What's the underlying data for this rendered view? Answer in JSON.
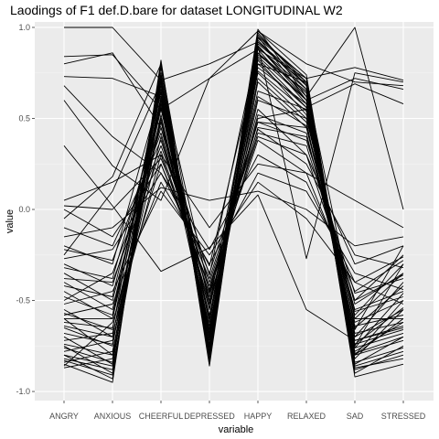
{
  "chart_data": {
    "type": "line",
    "title": "Laodings of F1 def.D.bare for dataset LONGITUDINAL W2",
    "xlabel": "variable",
    "ylabel": "value",
    "categories": [
      "ANGRY",
      "ANXIOUS",
      "CHEERFUL",
      "DEPRESSED",
      "HAPPY",
      "RELAXED",
      "SAD",
      "STRESSED"
    ],
    "y_ticks": [
      {
        "value": 1.0,
        "label": "1.0"
      },
      {
        "value": 0.5,
        "label": "0.5"
      },
      {
        "value": 0.0,
        "label": "0.0"
      },
      {
        "value": -0.5,
        "label": "-0.5"
      },
      {
        "value": -1.0,
        "label": "-1.0"
      }
    ],
    "ylim": [
      -1.05,
      1.03
    ],
    "grid": true,
    "legend": "none",
    "colors": {
      "panel": "#ebebeb",
      "grid_major": "#ffffff",
      "grid_minor": "#f4f4f4",
      "line": "#000000",
      "tick_text": "#4d4d4d"
    },
    "series": [
      {
        "values": [
          1.0,
          1.0,
          0.71,
          -0.71,
          0.99,
          0.62,
          1.0,
          0.0
        ]
      },
      {
        "values": [
          -0.6,
          -0.6,
          0.71,
          0.8,
          0.92,
          0.68,
          -0.6,
          -0.6
        ]
      },
      {
        "values": [
          0.84,
          0.85,
          0.55,
          0.72,
          0.88,
          0.72,
          0.78,
          0.71
        ]
      },
      {
        "values": [
          0.8,
          0.86,
          0.45,
          -0.36,
          0.9,
          -0.27,
          0.75,
          0.7
        ]
      },
      {
        "values": [
          0.73,
          0.72,
          0.62,
          -0.52,
          0.86,
          0.6,
          0.72,
          0.66
        ]
      },
      {
        "values": [
          0.68,
          0.4,
          0.2,
          -0.31,
          0.83,
          0.56,
          0.69,
          0.58
        ]
      },
      {
        "values": [
          0.6,
          0.24,
          0.05,
          0.72,
          0.98,
          0.8,
          0.7,
          0.68
        ]
      },
      {
        "values": [
          0.35,
          0.02,
          -0.34,
          -0.21,
          0.08,
          -0.55,
          -0.72,
          -0.65
        ]
      },
      {
        "values": [
          0.02,
          0.0,
          0.28,
          -0.35,
          0.48,
          0.45,
          -0.52,
          -0.35
        ]
      },
      {
        "values": [
          -0.05,
          0.18,
          0.8,
          -0.68,
          0.95,
          0.72,
          -0.8,
          -0.5
        ]
      },
      {
        "values": [
          -0.2,
          -0.3,
          0.65,
          -0.6,
          0.9,
          0.6,
          -0.65,
          -0.42
        ]
      },
      {
        "values": [
          -0.25,
          0.1,
          0.7,
          -0.45,
          0.5,
          0.55,
          -0.7,
          -0.55
        ]
      },
      {
        "values": [
          -0.3,
          -0.42,
          0.45,
          -0.55,
          0.75,
          0.5,
          -0.6,
          -0.35
        ]
      },
      {
        "values": [
          -0.35,
          -0.5,
          0.5,
          -0.7,
          0.85,
          0.65,
          -0.75,
          -0.3
        ]
      },
      {
        "values": [
          -0.4,
          -0.55,
          0.6,
          -0.62,
          0.8,
          0.7,
          -0.8,
          -0.6
        ]
      },
      {
        "values": [
          -0.45,
          -0.6,
          0.55,
          -0.5,
          0.45,
          0.4,
          -0.55,
          -0.45
        ]
      },
      {
        "values": [
          -0.5,
          -0.35,
          0.35,
          -0.4,
          0.4,
          0.3,
          -0.5,
          -0.25
        ]
      },
      {
        "values": [
          -0.55,
          -0.7,
          0.62,
          -0.75,
          0.95,
          0.6,
          -0.85,
          -0.7
        ]
      },
      {
        "values": [
          -0.6,
          -0.8,
          0.75,
          -0.82,
          0.97,
          0.68,
          -0.9,
          -0.75
        ]
      },
      {
        "values": [
          -0.65,
          -0.75,
          0.68,
          -0.78,
          0.9,
          0.62,
          -0.82,
          -0.55
        ]
      },
      {
        "values": [
          -0.7,
          -0.85,
          0.7,
          -0.74,
          0.88,
          0.58,
          -0.78,
          -0.62
        ]
      },
      {
        "values": [
          -0.75,
          -0.9,
          0.72,
          -0.8,
          0.93,
          0.66,
          -0.88,
          -0.8
        ]
      },
      {
        "values": [
          -0.8,
          -0.93,
          0.78,
          -0.84,
          0.96,
          0.7,
          -0.92,
          -0.85
        ]
      },
      {
        "values": [
          -0.82,
          -0.88,
          0.6,
          -0.7,
          0.7,
          0.45,
          -0.62,
          -0.5
        ]
      },
      {
        "values": [
          -0.85,
          -0.95,
          0.82,
          -0.86,
          0.98,
          0.74,
          -0.86,
          -0.78
        ]
      },
      {
        "values": [
          -0.87,
          -0.82,
          0.58,
          -0.66,
          0.82,
          0.52,
          -0.7,
          -0.4
        ]
      },
      {
        "values": [
          -0.84,
          -0.78,
          0.5,
          -0.6,
          0.6,
          0.5,
          -0.58,
          -0.3
        ]
      },
      {
        "values": [
          -0.78,
          -0.72,
          0.4,
          -0.52,
          0.52,
          0.42,
          -0.66,
          -0.2
        ]
      },
      {
        "values": [
          -0.72,
          -0.68,
          0.3,
          -0.46,
          0.42,
          0.35,
          -0.5,
          -0.36
        ]
      },
      {
        "values": [
          -0.86,
          -0.62,
          0.25,
          -0.42,
          0.38,
          0.2,
          -0.45,
          -0.28
        ]
      },
      {
        "values": [
          -0.58,
          -0.52,
          0.15,
          -0.3,
          0.2,
          0.1,
          -0.35,
          -0.44
        ]
      },
      {
        "values": [
          -0.52,
          -0.45,
          0.1,
          -0.25,
          0.15,
          -0.05,
          -0.4,
          -0.52
        ]
      },
      {
        "values": [
          -0.62,
          -0.65,
          0.48,
          -0.58,
          0.65,
          0.55,
          -0.64,
          -0.58
        ]
      },
      {
        "values": [
          -0.68,
          -0.74,
          0.52,
          -0.64,
          0.72,
          0.48,
          -0.74,
          -0.66
        ]
      },
      {
        "values": [
          -0.76,
          -0.84,
          0.66,
          -0.72,
          0.86,
          0.64,
          -0.8,
          -0.72
        ]
      },
      {
        "values": [
          -0.8,
          -0.86,
          0.74,
          -0.8,
          0.92,
          0.7,
          -0.84,
          -0.76
        ]
      },
      {
        "values": [
          -0.1,
          -0.2,
          0.38,
          -0.48,
          0.55,
          0.3,
          -0.3,
          -0.2
        ]
      },
      {
        "values": [
          0.0,
          -0.15,
          0.25,
          -0.38,
          0.44,
          0.25,
          -0.25,
          -0.32
        ]
      },
      {
        "values": [
          -0.22,
          -0.28,
          0.42,
          -0.54,
          0.62,
          0.46,
          -0.56,
          -0.48
        ]
      },
      {
        "values": [
          -0.32,
          -0.38,
          0.56,
          -0.66,
          0.78,
          0.58,
          -0.68,
          -0.62
        ]
      },
      {
        "values": [
          -0.42,
          -0.48,
          0.64,
          -0.7,
          0.84,
          0.6,
          -0.72,
          -0.64
        ]
      },
      {
        "values": [
          -0.48,
          -0.58,
          0.7,
          -0.76,
          0.89,
          0.66,
          -0.76,
          -0.68
        ]
      },
      {
        "values": [
          -0.57,
          -0.66,
          0.74,
          -0.78,
          0.91,
          0.69,
          -0.79,
          -0.7
        ]
      },
      {
        "values": [
          -0.27,
          -0.22,
          0.2,
          -0.22,
          0.3,
          0.15,
          -0.4,
          -0.26
        ]
      },
      {
        "values": [
          -0.38,
          -0.4,
          0.32,
          -0.44,
          0.48,
          0.38,
          -0.46,
          -0.38
        ]
      },
      {
        "values": [
          -0.64,
          -0.7,
          0.58,
          -0.68,
          0.8,
          0.56,
          -0.74,
          -0.54
        ]
      },
      {
        "values": [
          -0.74,
          -0.8,
          0.62,
          -0.7,
          0.76,
          0.54,
          -0.76,
          -0.46
        ]
      },
      {
        "values": [
          -0.83,
          -0.91,
          0.8,
          -0.83,
          0.94,
          0.72,
          -0.87,
          -0.82
        ]
      },
      {
        "values": [
          -0.15,
          -0.1,
          0.12,
          0.05,
          0.1,
          0.0,
          -0.2,
          -0.15
        ]
      },
      {
        "values": [
          0.05,
          0.15,
          0.3,
          -0.1,
          0.25,
          0.2,
          0.05,
          -0.1
        ]
      }
    ]
  }
}
